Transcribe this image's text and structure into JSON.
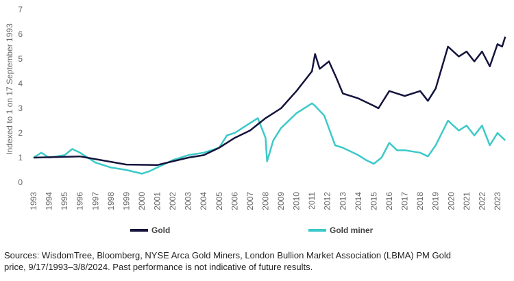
{
  "chart_data": {
    "type": "line",
    "y_label": "Indexed to 1 on 17 September 1993",
    "xlim": [
      1992.6,
      2023.8
    ],
    "xticks": [
      1993,
      1994,
      1995,
      1996,
      1997,
      1998,
      1999,
      2000,
      2001,
      2002,
      2003,
      2004,
      2005,
      2006,
      2007,
      2008,
      2009,
      2010,
      2011,
      2012,
      2013,
      2014,
      2015,
      2016,
      2017,
      2018,
      2019,
      2020,
      2021,
      2022,
      2023
    ],
    "ylim": [
      0,
      7
    ],
    "yticks": [
      0,
      1,
      2,
      3,
      4,
      5,
      6,
      7
    ],
    "grid": false,
    "legend": "bottom",
    "series": [
      {
        "name": "Gold",
        "color": "#14143c",
        "x": [
          1993,
          1996,
          1999,
          2001,
          2002,
          2003,
          2004,
          2005,
          2006,
          2007,
          2008,
          2009,
          2010,
          2011,
          2011.2,
          2011.5,
          2012.1,
          2012.6,
          2013,
          2014,
          2015,
          2015.3,
          2016,
          2016.5,
          2017,
          2018,
          2018.5,
          2019,
          2019.8,
          2020.5,
          2021,
          2021.5,
          2022,
          2022.5,
          2023,
          2023.3,
          2023.5
        ],
        "values": [
          1,
          1.05,
          0.72,
          0.7,
          0.85,
          1.0,
          1.1,
          1.4,
          1.8,
          2.1,
          2.6,
          3.0,
          3.7,
          4.5,
          5.2,
          4.6,
          4.9,
          4.2,
          3.6,
          3.4,
          3.1,
          3.0,
          3.7,
          3.6,
          3.5,
          3.7,
          3.3,
          3.8,
          5.5,
          5.1,
          5.3,
          4.9,
          5.3,
          4.7,
          5.6,
          5.5,
          5.9
        ]
      },
      {
        "name": "Gold miner",
        "color": "#3cc9c9",
        "x": [
          1993,
          1993.5,
          1994,
          1995,
          1995.5,
          1996,
          1997,
          1998,
          1999,
          2000,
          2000.5,
          2001,
          2002,
          2003,
          2004,
          2005,
          2005.5,
          2006,
          2007,
          2007.5,
          2008,
          2008.1,
          2008.5,
          2009,
          2010,
          2011,
          2011.2,
          2011.8,
          2012.5,
          2013,
          2014,
          2014.5,
          2015,
          2015.5,
          2016,
          2016.5,
          2017,
          2018,
          2018.5,
          2019,
          2019.8,
          2020.5,
          2021,
          2021.5,
          2022,
          2022.5,
          2023,
          2023.5
        ],
        "values": [
          1.0,
          1.2,
          1.0,
          1.1,
          1.35,
          1.2,
          0.8,
          0.6,
          0.5,
          0.35,
          0.45,
          0.6,
          0.9,
          1.1,
          1.2,
          1.4,
          1.9,
          2.0,
          2.4,
          2.6,
          1.8,
          0.85,
          1.7,
          2.2,
          2.8,
          3.2,
          3.1,
          2.7,
          1.5,
          1.4,
          1.1,
          0.9,
          0.75,
          1.0,
          1.6,
          1.3,
          1.3,
          1.2,
          1.05,
          1.5,
          2.5,
          2.1,
          2.3,
          1.9,
          2.3,
          1.5,
          2.0,
          1.7
        ]
      }
    ],
    "source": "Sources: WisdomTree, Bloomberg, NYSE Arca Gold Miners, London Bullion Market Association (LBMA) PM Gold price, 9/17/1993–3/8/2024. Past performance is not indicative of future results."
  }
}
